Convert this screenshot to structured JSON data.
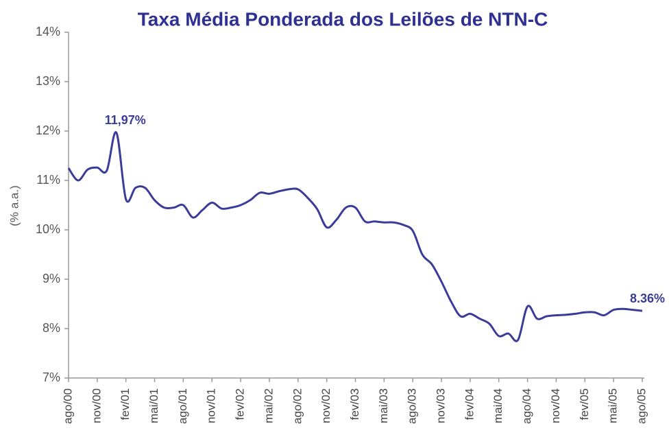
{
  "chart_data": {
    "type": "line",
    "title": "Taxa Média Ponderada dos Leilões de NTN-C",
    "ylabel": "(% a.a.)",
    "categories": [
      "ago/00",
      null,
      null,
      "nov/00",
      null,
      null,
      "fev/01",
      null,
      null,
      "mai/01",
      null,
      null,
      "ago/01",
      null,
      null,
      "nov/01",
      null,
      null,
      "fev/02",
      null,
      null,
      "mai/02",
      null,
      null,
      "ago/02",
      null,
      null,
      "nov/02",
      null,
      null,
      "fev/03",
      null,
      null,
      "mai/03",
      null,
      null,
      "ago/03",
      null,
      null,
      "nov/03",
      null,
      null,
      "fev/04",
      null,
      null,
      "mai/04",
      null,
      null,
      "ago/04",
      null,
      null,
      "nov/04",
      null,
      null,
      "fev/05",
      null,
      null,
      "mai/05",
      null,
      null,
      "ago/05"
    ],
    "values": [
      11.25,
      11.0,
      11.22,
      11.26,
      11.2,
      11.97,
      10.62,
      10.85,
      10.85,
      10.6,
      10.45,
      10.45,
      10.5,
      10.25,
      10.4,
      10.55,
      10.43,
      10.45,
      10.5,
      10.6,
      10.75,
      10.73,
      10.78,
      10.82,
      10.82,
      10.65,
      10.42,
      10.05,
      10.2,
      10.45,
      10.45,
      10.17,
      10.17,
      10.15,
      10.15,
      10.1,
      9.98,
      9.5,
      9.3,
      8.95,
      8.55,
      8.25,
      8.3,
      8.2,
      8.1,
      7.85,
      7.9,
      7.77,
      8.45,
      8.2,
      8.25,
      8.27,
      8.28,
      8.3,
      8.33,
      8.33,
      8.27,
      8.38,
      8.4,
      8.38,
      8.36
    ],
    "value_labels": [
      null,
      null,
      null,
      null,
      null,
      "11,97%",
      null,
      null,
      null,
      null,
      null,
      null,
      null,
      null,
      null,
      null,
      null,
      null,
      null,
      null,
      null,
      null,
      null,
      null,
      null,
      null,
      null,
      null,
      null,
      null,
      null,
      null,
      null,
      null,
      null,
      null,
      null,
      null,
      null,
      null,
      null,
      null,
      null,
      null,
      null,
      null,
      null,
      null,
      null,
      null,
      null,
      null,
      null,
      null,
      null,
      null,
      null,
      null,
      null,
      null,
      "8.36%"
    ],
    "color": "#3b3c98",
    "ylim": [
      7,
      14
    ],
    "yticks": [
      {
        "value": 7,
        "label": "7%"
      },
      {
        "value": 8,
        "label": "8%"
      },
      {
        "value": 9,
        "label": "9%"
      },
      {
        "value": 10,
        "label": "10%"
      },
      {
        "value": 11,
        "label": "11%"
      },
      {
        "value": 12,
        "label": "12%"
      },
      {
        "value": 13,
        "label": "13%"
      },
      {
        "value": 14,
        "label": "14%"
      }
    ],
    "grid": false
  }
}
